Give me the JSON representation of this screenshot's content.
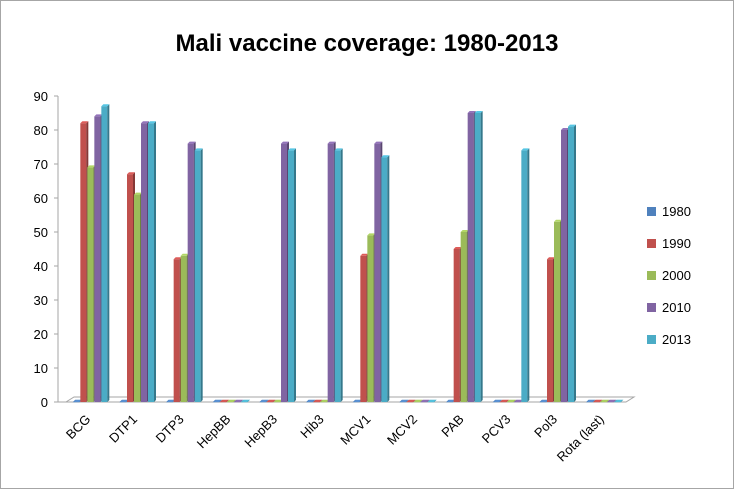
{
  "chart_data": {
    "type": "bar",
    "title": "Mali vaccine coverage: 1980-2013",
    "xlabel": "",
    "ylabel": "",
    "categories": [
      "BCG",
      "DTP1",
      "DTP3",
      "HepBB",
      "HepB3",
      "Hib3",
      "MCV1",
      "MCV2",
      "PAB",
      "PCV3",
      "Pol3",
      "Rota (last)"
    ],
    "ylim": [
      0,
      90
    ],
    "yticks": [
      0,
      10,
      20,
      30,
      40,
      50,
      60,
      70,
      80,
      90
    ],
    "grid": false,
    "legend_position": "right",
    "series": [
      {
        "name": "1980",
        "color": "#4f81bd",
        "values": [
          0,
          0,
          0,
          0,
          0,
          0,
          0,
          0,
          0,
          0,
          0,
          0
        ]
      },
      {
        "name": "1990",
        "color": "#c0504d",
        "values": [
          82,
          67,
          42,
          0,
          0,
          0,
          43,
          0,
          45,
          0,
          42,
          0
        ]
      },
      {
        "name": "2000",
        "color": "#9bbb59",
        "values": [
          69,
          61,
          43,
          0,
          0,
          0,
          49,
          0,
          50,
          0,
          53,
          0
        ]
      },
      {
        "name": "2010",
        "color": "#8064a2",
        "values": [
          84,
          82,
          76,
          0,
          76,
          76,
          76,
          0,
          85,
          0,
          80,
          0
        ]
      },
      {
        "name": "2013",
        "color": "#4bacc6",
        "values": [
          87,
          82,
          74,
          0,
          74,
          74,
          72,
          0,
          85,
          74,
          81,
          0
        ]
      }
    ]
  }
}
